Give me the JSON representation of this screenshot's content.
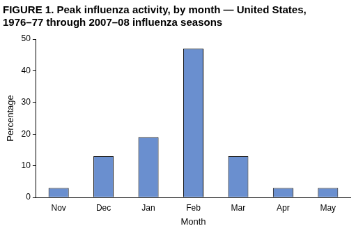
{
  "chart_data": {
    "type": "bar",
    "title": [
      "FIGURE 1. Peak influenza activity, by month — United States,",
      "1976–77 through 2007–08 influenza seasons"
    ],
    "x_label": "Month",
    "y_label": "Percentage",
    "categories": [
      "Nov",
      "Dec",
      "Jan",
      "Feb",
      "Mar",
      "Apr",
      "May"
    ],
    "values": [
      3,
      13,
      19,
      47,
      13,
      3,
      3
    ],
    "color": "#6a8fcf",
    "ylim": [
      0,
      50
    ],
    "yticks": [
      0,
      10,
      20,
      30,
      40,
      50
    ],
    "grid": false
  }
}
